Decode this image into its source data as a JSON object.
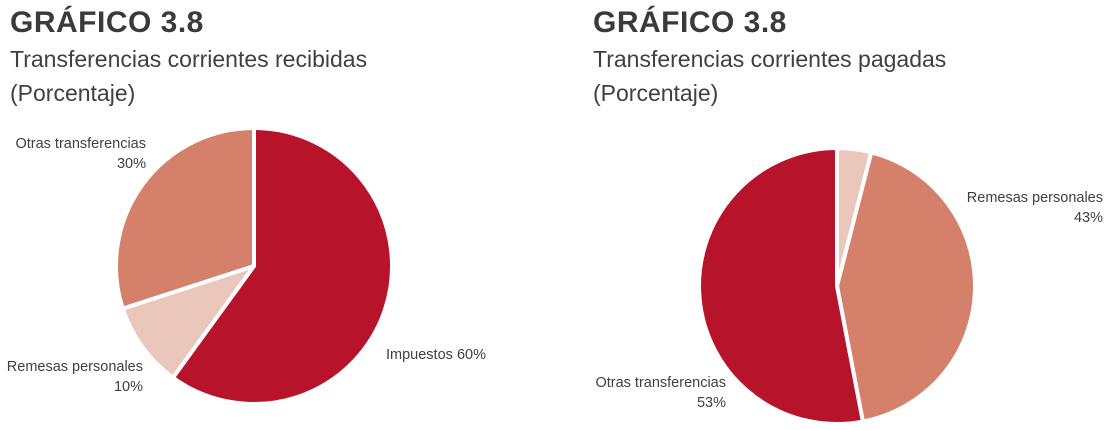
{
  "charts": [
    {
      "title": "GRÁFICO 3.8",
      "subtitle": "Transferencias corrientes recibidas",
      "unit": "(Porcentaje)",
      "labels": [
        {
          "name": "Otras transferencias",
          "value": "30%"
        },
        {
          "name": "Remesas personales",
          "value": "10%"
        },
        {
          "name": "Impuestos",
          "value": "60%"
        }
      ]
    },
    {
      "title": "GRÁFICO 3.8",
      "subtitle": "Transferencias corrientes pagadas",
      "unit": "(Porcentaje)",
      "labels": [
        {
          "name": "Remesas personales",
          "value": "43%"
        },
        {
          "name": "Otras transferencias",
          "value": "53%"
        }
      ]
    }
  ],
  "chart_data": [
    {
      "type": "pie",
      "title": "GRÁFICO 3.8 Transferencias corrientes recibidas (Porcentaje)",
      "slices": [
        {
          "label": "Impuestos",
          "value": 60,
          "color": "#b7132a"
        },
        {
          "label": "Remesas personales",
          "value": 10,
          "color": "#ebc7bb"
        },
        {
          "label": "Otras transferencias",
          "value": 30,
          "color": "#d4806a"
        }
      ]
    },
    {
      "type": "pie",
      "title": "GRÁFICO 3.8 Transferencias corrientes pagadas (Porcentaje)",
      "slices": [
        {
          "label": "",
          "value": 4,
          "color": "#ebc7bb"
        },
        {
          "label": "Remesas personales",
          "value": 43,
          "color": "#d4806a"
        },
        {
          "label": "Otras transferencias",
          "value": 53,
          "color": "#b7132a"
        }
      ]
    }
  ]
}
